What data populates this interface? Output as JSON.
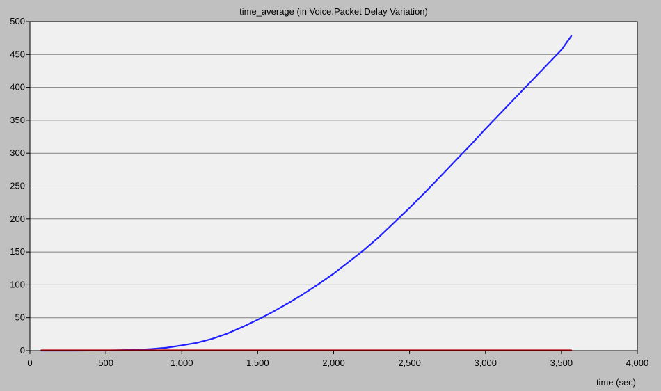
{
  "colors": {
    "background": "#c0c0c0",
    "plot_background": "#f0f0f0",
    "gridline": "#808080",
    "axis": "#000000",
    "series_blue": "#1f1fff",
    "series_red": "#cc0000"
  },
  "chart_data": {
    "type": "line",
    "title": "time_average (in Voice.Packet Delay Variation)",
    "xlabel": "time (sec)",
    "ylabel": "",
    "xlim": [
      0,
      4000
    ],
    "ylim": [
      0,
      500
    ],
    "x_ticks": [
      0,
      500,
      1000,
      1500,
      2000,
      2500,
      3000,
      3500,
      4000
    ],
    "x_tick_labels": [
      "0",
      "500",
      "1,000",
      "1,500",
      "2,000",
      "2,500",
      "3,000",
      "3,500",
      "4,000"
    ],
    "y_ticks": [
      0,
      50,
      100,
      150,
      200,
      250,
      300,
      350,
      400,
      450,
      500
    ],
    "y_tick_labels": [
      "0",
      "50",
      "100",
      "150",
      "200",
      "250",
      "300",
      "350",
      "400",
      "450",
      "500"
    ],
    "grid": "horizontal",
    "series": [
      {
        "color": "#1f1fff",
        "x": [
          75,
          300,
          500,
          700,
          800,
          900,
          1000,
          1100,
          1200,
          1300,
          1400,
          1500,
          1600,
          1700,
          1800,
          1900,
          2000,
          2100,
          2200,
          2300,
          2400,
          2500,
          2600,
          2700,
          2800,
          2900,
          3000,
          3100,
          3200,
          3300,
          3400,
          3500,
          3565
        ],
        "y": [
          0,
          0,
          0.3,
          1.2,
          2.5,
          4.5,
          8,
          12,
          18,
          26,
          36,
          47,
          59,
          72,
          86,
          101,
          117,
          135,
          153,
          173,
          195,
          217,
          240,
          264,
          288,
          312,
          337,
          361,
          385,
          409,
          433,
          457,
          478
        ]
      },
      {
        "color": "#cc0000",
        "x": [
          75,
          3565
        ],
        "y": [
          0.5,
          0.5
        ]
      }
    ]
  }
}
